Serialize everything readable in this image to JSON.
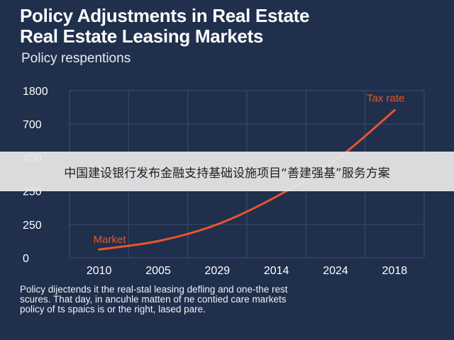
{
  "chart_data": {
    "type": "line",
    "title": "Policy Adjustments in Real Estate\nReal Estate Leasing Markets",
    "subtitle": "Policy respentions",
    "categories": [
      "2010",
      "2005",
      "2029",
      "2014",
      "2024",
      "2018"
    ],
    "y_tick_labels": [
      "1800",
      "700",
      "400",
      "250",
      "250",
      "0"
    ],
    "series": [
      {
        "values": [
          0.3,
          0.6,
          1.2,
          2.2,
          3.5,
          5.3
        ]
      }
    ],
    "annotations": [
      {
        "text": "Tax rate",
        "anchor": "line-end"
      },
      {
        "text": "Market",
        "anchor": "line-start"
      }
    ],
    "grid": true,
    "line_color": "#e8552e",
    "ylim": [
      0,
      6
    ],
    "note": [
      "Policy dijectends it the real-stal leasing defling and one-the rest",
      "scures. That day, in ancuhle matten of ne contied care markets",
      "policy of ts spaics is or the right, lased pare."
    ]
  },
  "banner": {
    "text": "中国建设银行发布金融支持基础设施项目“善建强基”服务方案"
  }
}
